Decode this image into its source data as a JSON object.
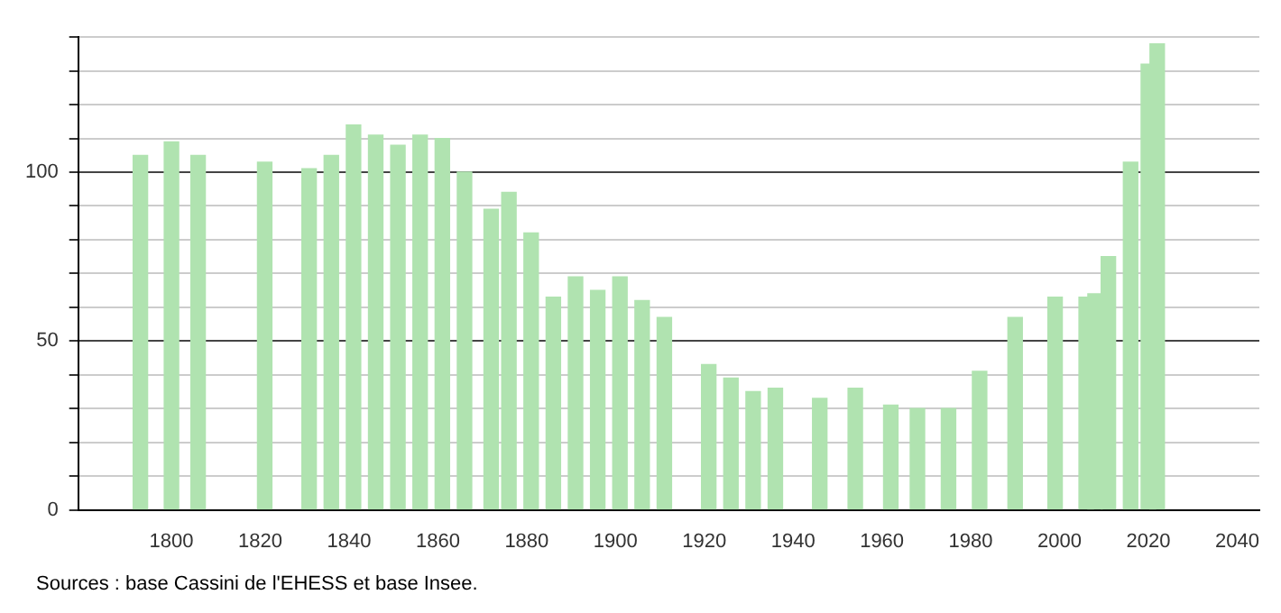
{
  "chart_data": {
    "type": "bar",
    "x": [
      1793,
      1800,
      1806,
      1821,
      1831,
      1836,
      1841,
      1846,
      1851,
      1856,
      1861,
      1866,
      1872,
      1876,
      1881,
      1886,
      1891,
      1896,
      1901,
      1906,
      1911,
      1921,
      1926,
      1931,
      1936,
      1946,
      1954,
      1962,
      1968,
      1975,
      1982,
      1990,
      1999,
      2006,
      2008,
      2011,
      2016,
      2020,
      2022
    ],
    "values": [
      105,
      109,
      105,
      103,
      101,
      105,
      114,
      111,
      108,
      111,
      110,
      100,
      89,
      94,
      82,
      63,
      69,
      65,
      69,
      62,
      57,
      43,
      39,
      35,
      36,
      33,
      36,
      31,
      30,
      30,
      41,
      57,
      63,
      63,
      64,
      75,
      103,
      132,
      138
    ],
    "color": "#b0e3b0",
    "xlim": [
      1779,
      2045
    ],
    "xticks": [
      1800,
      1820,
      1840,
      1860,
      1880,
      1900,
      1920,
      1940,
      1960,
      1980,
      2000,
      2020,
      2040
    ],
    "ylim": [
      0,
      140
    ],
    "yticks": [
      0,
      {
        "value": 10,
        "label": null
      },
      {
        "value": 20,
        "label": null
      },
      {
        "value": 30,
        "label": null
      },
      {
        "value": 40,
        "label": null
      },
      50,
      {
        "value": 60,
        "label": null
      },
      {
        "value": 70,
        "label": null
      },
      {
        "value": 80,
        "label": null
      },
      {
        "value": 90,
        "label": null
      },
      100,
      {
        "value": 110,
        "label": null
      },
      {
        "value": 120,
        "label": null
      },
      {
        "value": 130,
        "label": null
      },
      {
        "value": 140,
        "label": null
      }
    ],
    "grid": "y",
    "legend": false,
    "annotations": [
      "Sources : base Cassini de l'EHESS et base Insee."
    ]
  }
}
